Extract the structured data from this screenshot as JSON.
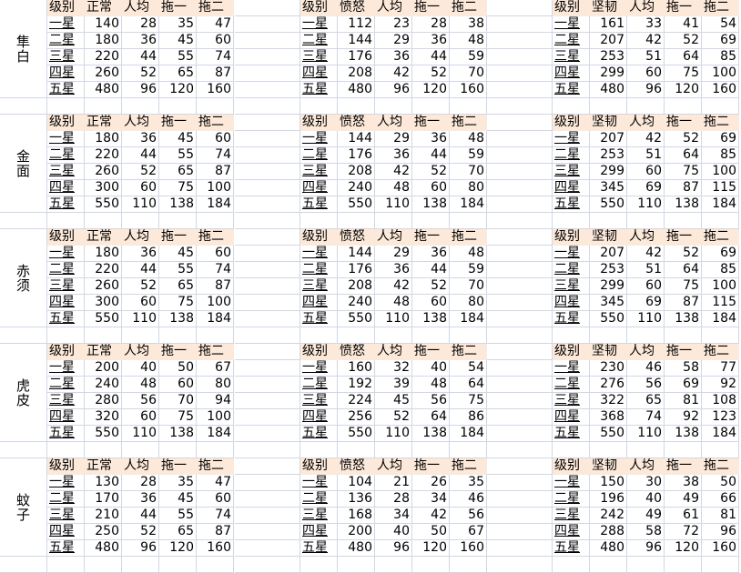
{
  "header_fill_color": "#fde9d9",
  "gridline_color": "#d0d7e5",
  "blocks": [
    {
      "name": "隼白",
      "tables": [
        {
          "headers": [
            "级别",
            "正常",
            "人均",
            "拖一",
            "拖二"
          ],
          "rows": [
            [
              "一星",
              "140",
              "28",
              "35",
              "47"
            ],
            [
              "二星",
              "180",
              "36",
              "45",
              "60"
            ],
            [
              "三星",
              "220",
              "44",
              "55",
              "74"
            ],
            [
              "四星",
              "260",
              "52",
              "65",
              "87"
            ],
            [
              "五星",
              "480",
              "96",
              "120",
              "160"
            ]
          ]
        },
        {
          "headers": [
            "级别",
            "愤怒",
            "人均",
            "拖一",
            "拖二"
          ],
          "rows": [
            [
              "一星",
              "112",
              "23",
              "28",
              "38"
            ],
            [
              "二星",
              "144",
              "29",
              "36",
              "48"
            ],
            [
              "三星",
              "176",
              "36",
              "44",
              "59"
            ],
            [
              "四星",
              "208",
              "42",
              "52",
              "70"
            ],
            [
              "五星",
              "480",
              "96",
              "120",
              "160"
            ]
          ]
        },
        {
          "headers": [
            "级别",
            "坚韧",
            "人均",
            "拖一",
            "拖二"
          ],
          "rows": [
            [
              "一星",
              "161",
              "33",
              "41",
              "54"
            ],
            [
              "二星",
              "207",
              "42",
              "52",
              "69"
            ],
            [
              "三星",
              "253",
              "51",
              "64",
              "85"
            ],
            [
              "四星",
              "299",
              "60",
              "75",
              "100"
            ],
            [
              "五星",
              "480",
              "96",
              "120",
              "160"
            ]
          ]
        }
      ]
    },
    {
      "name": "金面",
      "tables": [
        {
          "headers": [
            "级别",
            "正常",
            "人均",
            "拖一",
            "拖二"
          ],
          "rows": [
            [
              "一星",
              "180",
              "36",
              "45",
              "60"
            ],
            [
              "二星",
              "220",
              "44",
              "55",
              "74"
            ],
            [
              "三星",
              "260",
              "52",
              "65",
              "87"
            ],
            [
              "四星",
              "300",
              "60",
              "75",
              "100"
            ],
            [
              "五星",
              "550",
              "110",
              "138",
              "184"
            ]
          ]
        },
        {
          "headers": [
            "级别",
            "愤怒",
            "人均",
            "拖一",
            "拖二"
          ],
          "rows": [
            [
              "一星",
              "144",
              "29",
              "36",
              "48"
            ],
            [
              "二星",
              "176",
              "36",
              "44",
              "59"
            ],
            [
              "三星",
              "208",
              "42",
              "52",
              "70"
            ],
            [
              "四星",
              "240",
              "48",
              "60",
              "80"
            ],
            [
              "五星",
              "550",
              "110",
              "138",
              "184"
            ]
          ]
        },
        {
          "headers": [
            "级别",
            "坚韧",
            "人均",
            "拖一",
            "拖二"
          ],
          "rows": [
            [
              "一星",
              "207",
              "42",
              "52",
              "69"
            ],
            [
              "二星",
              "253",
              "51",
              "64",
              "85"
            ],
            [
              "三星",
              "299",
              "60",
              "75",
              "100"
            ],
            [
              "四星",
              "345",
              "69",
              "87",
              "115"
            ],
            [
              "五星",
              "550",
              "110",
              "138",
              "184"
            ]
          ]
        }
      ]
    },
    {
      "name": "赤须",
      "tables": [
        {
          "headers": [
            "级别",
            "正常",
            "人均",
            "拖一",
            "拖二"
          ],
          "rows": [
            [
              "一星",
              "180",
              "36",
              "45",
              "60"
            ],
            [
              "二星",
              "220",
              "44",
              "55",
              "74"
            ],
            [
              "三星",
              "260",
              "52",
              "65",
              "87"
            ],
            [
              "四星",
              "300",
              "60",
              "75",
              "100"
            ],
            [
              "五星",
              "550",
              "110",
              "138",
              "184"
            ]
          ]
        },
        {
          "headers": [
            "级别",
            "愤怒",
            "人均",
            "拖一",
            "拖二"
          ],
          "rows": [
            [
              "一星",
              "144",
              "29",
              "36",
              "48"
            ],
            [
              "二星",
              "176",
              "36",
              "44",
              "59"
            ],
            [
              "三星",
              "208",
              "42",
              "52",
              "70"
            ],
            [
              "四星",
              "240",
              "48",
              "60",
              "80"
            ],
            [
              "五星",
              "550",
              "110",
              "138",
              "184"
            ]
          ]
        },
        {
          "headers": [
            "级别",
            "坚韧",
            "人均",
            "拖一",
            "拖二"
          ],
          "rows": [
            [
              "一星",
              "207",
              "42",
              "52",
              "69"
            ],
            [
              "二星",
              "253",
              "51",
              "64",
              "85"
            ],
            [
              "三星",
              "299",
              "60",
              "75",
              "100"
            ],
            [
              "四星",
              "345",
              "69",
              "87",
              "115"
            ],
            [
              "五星",
              "550",
              "110",
              "138",
              "184"
            ]
          ]
        }
      ]
    },
    {
      "name": "虎皮",
      "tables": [
        {
          "headers": [
            "级别",
            "正常",
            "人均",
            "拖一",
            "拖二"
          ],
          "rows": [
            [
              "一星",
              "200",
              "40",
              "50",
              "67"
            ],
            [
              "二星",
              "240",
              "48",
              "60",
              "80"
            ],
            [
              "三星",
              "280",
              "56",
              "70",
              "94"
            ],
            [
              "四星",
              "320",
              "60",
              "75",
              "100"
            ],
            [
              "五星",
              "550",
              "110",
              "138",
              "184"
            ]
          ]
        },
        {
          "headers": [
            "级别",
            "愤怒",
            "人均",
            "拖一",
            "拖二"
          ],
          "rows": [
            [
              "一星",
              "160",
              "32",
              "40",
              "54"
            ],
            [
              "二星",
              "192",
              "39",
              "48",
              "64"
            ],
            [
              "三星",
              "224",
              "45",
              "56",
              "75"
            ],
            [
              "四星",
              "256",
              "52",
              "64",
              "86"
            ],
            [
              "五星",
              "550",
              "110",
              "138",
              "184"
            ]
          ]
        },
        {
          "headers": [
            "级别",
            "坚韧",
            "人均",
            "拖一",
            "拖二"
          ],
          "rows": [
            [
              "一星",
              "230",
              "46",
              "58",
              "77"
            ],
            [
              "二星",
              "276",
              "56",
              "69",
              "92"
            ],
            [
              "三星",
              "322",
              "65",
              "81",
              "108"
            ],
            [
              "四星",
              "368",
              "74",
              "92",
              "123"
            ],
            [
              "五星",
              "550",
              "110",
              "138",
              "184"
            ]
          ]
        }
      ]
    },
    {
      "name": "蚊子",
      "tables": [
        {
          "headers": [
            "级别",
            "正常",
            "人均",
            "拖一",
            "拖二"
          ],
          "rows": [
            [
              "一星",
              "130",
              "28",
              "35",
              "47"
            ],
            [
              "二星",
              "170",
              "36",
              "45",
              "60"
            ],
            [
              "三星",
              "210",
              "44",
              "55",
              "74"
            ],
            [
              "四星",
              "250",
              "52",
              "65",
              "87"
            ],
            [
              "五星",
              "480",
              "96",
              "120",
              "160"
            ]
          ]
        },
        {
          "headers": [
            "级别",
            "愤怒",
            "人均",
            "拖一",
            "拖二"
          ],
          "rows": [
            [
              "一星",
              "104",
              "21",
              "26",
              "35"
            ],
            [
              "二星",
              "136",
              "28",
              "34",
              "46"
            ],
            [
              "三星",
              "168",
              "34",
              "42",
              "56"
            ],
            [
              "四星",
              "200",
              "40",
              "50",
              "67"
            ],
            [
              "五星",
              "480",
              "96",
              "120",
              "160"
            ]
          ]
        },
        {
          "headers": [
            "级别",
            "坚韧",
            "人均",
            "拖一",
            "拖二"
          ],
          "rows": [
            [
              "一星",
              "150",
              "30",
              "38",
              "50"
            ],
            [
              "二星",
              "196",
              "40",
              "49",
              "66"
            ],
            [
              "三星",
              "242",
              "49",
              "61",
              "81"
            ],
            [
              "四星",
              "288",
              "58",
              "72",
              "96"
            ],
            [
              "五星",
              "480",
              "96",
              "120",
              "160"
            ]
          ]
        }
      ]
    }
  ]
}
